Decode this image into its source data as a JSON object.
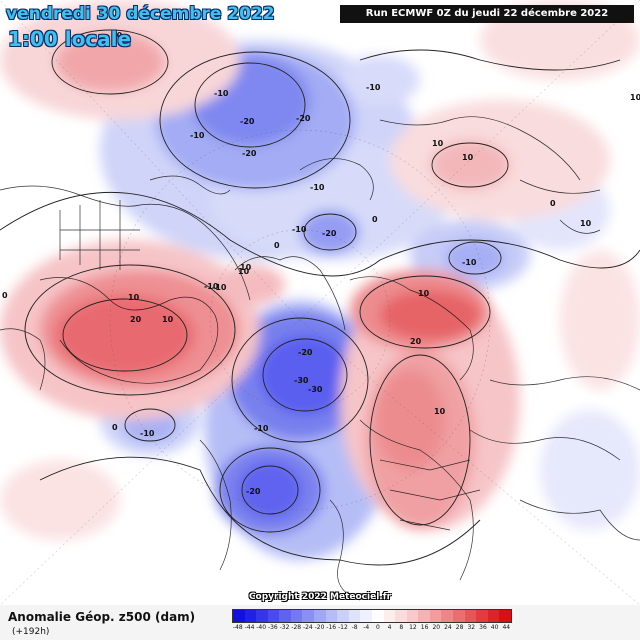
{
  "header": {
    "date": "vendredi 30 décembre 2022",
    "time": "1:00 locale",
    "run": "Run ECMWF 0Z du jeudi 22 décembre 2022"
  },
  "map": {
    "copyright": "Copyright 2022 Meteociel.fr",
    "contour_labels": [
      "10",
      "-10",
      "-20",
      "-20",
      "-20",
      "-10",
      "-10",
      "-10",
      "-10",
      "-20",
      "-10",
      "0",
      "0",
      "10",
      "10",
      "10",
      "-10",
      "0",
      "10",
      "20",
      "-10",
      "10",
      "-20",
      "-30",
      "-30",
      "-10",
      "-20",
      "10",
      "20",
      "10",
      "0",
      "0",
      "10",
      "-10",
      "10",
      "10"
    ],
    "colors": {
      "strong_negative": "#5a5ef0",
      "negative": "#9aa8f2",
      "weak_negative": "#d2d6f8",
      "weak_positive": "#f6cdd0",
      "positive": "#ef8f92",
      "strong_positive": "#e85a5c"
    }
  },
  "footer": {
    "title": "Anomalie Géop. z500 (dam)",
    "subtitle": "(+192h)"
  },
  "scale": {
    "ticks": [
      "-48",
      "-44",
      "-40",
      "-36",
      "-32",
      "-28",
      "-24",
      "-20",
      "-16",
      "-12",
      "-8",
      "-4",
      "0",
      "4",
      "8",
      "12",
      "16",
      "20",
      "24",
      "28",
      "32",
      "36",
      "40",
      "44"
    ],
    "colors": [
      "#1010e0",
      "#2020e6",
      "#3535ea",
      "#4a4aee",
      "#5f63f0",
      "#7478f2",
      "#8a90f3",
      "#a0a8f5",
      "#b6bcf7",
      "#cbd0f9",
      "#dfe2fb",
      "#eef0fd",
      "#ffffff",
      "#fdeeee",
      "#fbdcdd",
      "#f8c8ca",
      "#f5b2b4",
      "#f29c9e",
      "#ee8588",
      "#ea6d70",
      "#e65558",
      "#e23c40",
      "#dd2428",
      "#d81014"
    ]
  }
}
